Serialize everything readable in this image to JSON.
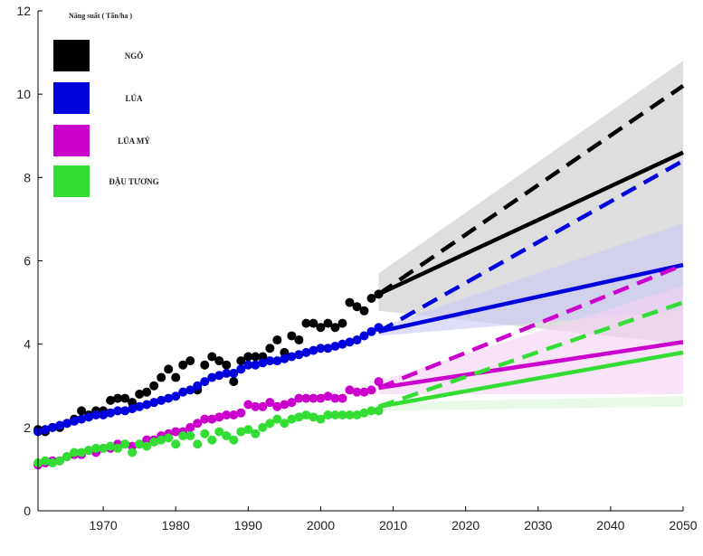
{
  "chart_data": {
    "type": "scatter",
    "title": "",
    "xlabel": "",
    "ylabel": "",
    "legend_title": "Năng suất ( Tấn/ha )",
    "legend_position": "top-left",
    "xlim": [
      1961,
      2050
    ],
    "ylim": [
      0,
      12
    ],
    "xticks": [
      1970,
      1980,
      1990,
      2000,
      2010,
      2020,
      2030,
      2040,
      2050
    ],
    "yticks": [
      0,
      2,
      4,
      6,
      8,
      10,
      12
    ],
    "grid": false,
    "series": [
      {
        "name": "NGÔ",
        "color": "#000000",
        "band_color": "#c8c8c8",
        "x": [
          1961,
          1962,
          1963,
          1964,
          1965,
          1966,
          1967,
          1968,
          1969,
          1970,
          1971,
          1972,
          1973,
          1974,
          1975,
          1976,
          1977,
          1978,
          1979,
          1980,
          1981,
          1982,
          1983,
          1984,
          1985,
          1986,
          1987,
          1988,
          1989,
          1990,
          1991,
          1992,
          1993,
          1994,
          1995,
          1996,
          1997,
          1998,
          1999,
          2000,
          2001,
          2002,
          2003,
          2004,
          2005,
          2006,
          2007,
          2008
        ],
        "y": [
          1.95,
          1.9,
          2.0,
          2.0,
          2.1,
          2.2,
          2.4,
          2.3,
          2.4,
          2.4,
          2.65,
          2.7,
          2.7,
          2.6,
          2.8,
          2.85,
          3.0,
          3.2,
          3.4,
          3.2,
          3.5,
          3.6,
          2.9,
          3.5,
          3.7,
          3.6,
          3.5,
          3.1,
          3.6,
          3.7,
          3.7,
          3.7,
          3.9,
          4.1,
          3.8,
          4.2,
          4.1,
          4.5,
          4.5,
          4.4,
          4.5,
          4.4,
          4.5,
          5.0,
          4.9,
          4.8,
          5.1,
          5.2
        ],
        "projection": {
          "x": [
            2008,
            2050
          ],
          "trend": [
            5.2,
            8.6
          ],
          "required": [
            5.2,
            10.2
          ],
          "band_low": [
            4.8,
            4.0
          ],
          "band_high": [
            5.7,
            10.8
          ]
        }
      },
      {
        "name": "LÚA",
        "color": "#0000dd",
        "band_color": "#c8c8f5",
        "x": [
          1961,
          1962,
          1963,
          1964,
          1965,
          1966,
          1967,
          1968,
          1969,
          1970,
          1971,
          1972,
          1973,
          1974,
          1975,
          1976,
          1977,
          1978,
          1979,
          1980,
          1981,
          1982,
          1983,
          1984,
          1985,
          1986,
          1987,
          1988,
          1989,
          1990,
          1991,
          1992,
          1993,
          1994,
          1995,
          1996,
          1997,
          1998,
          1999,
          2000,
          2001,
          2002,
          2003,
          2004,
          2005,
          2006,
          2007,
          2008
        ],
        "y": [
          1.9,
          1.95,
          2.0,
          2.05,
          2.1,
          2.15,
          2.2,
          2.25,
          2.3,
          2.3,
          2.35,
          2.4,
          2.4,
          2.45,
          2.5,
          2.55,
          2.6,
          2.65,
          2.7,
          2.75,
          2.85,
          2.9,
          3.0,
          3.1,
          3.2,
          3.25,
          3.3,
          3.3,
          3.4,
          3.5,
          3.5,
          3.55,
          3.6,
          3.6,
          3.65,
          3.7,
          3.75,
          3.8,
          3.85,
          3.9,
          3.9,
          3.95,
          4.0,
          4.05,
          4.1,
          4.2,
          4.3,
          4.4
        ],
        "projection": {
          "x": [
            2008,
            2050
          ],
          "trend": [
            4.3,
            5.9
          ],
          "required": [
            4.3,
            8.4
          ],
          "band_low": [
            4.2,
            4.8
          ],
          "band_high": [
            4.4,
            6.9
          ]
        }
      },
      {
        "name": "LÚA MÝ",
        "color": "#cc00cc",
        "band_color": "#f5d0f5",
        "x": [
          1961,
          1962,
          1963,
          1964,
          1965,
          1966,
          1967,
          1968,
          1969,
          1970,
          1971,
          1972,
          1973,
          1974,
          1975,
          1976,
          1977,
          1978,
          1979,
          1980,
          1981,
          1982,
          1983,
          1984,
          1985,
          1986,
          1987,
          1988,
          1989,
          1990,
          1991,
          1992,
          1993,
          1994,
          1995,
          1996,
          1997,
          1998,
          1999,
          2000,
          2001,
          2002,
          2003,
          2004,
          2005,
          2006,
          2007,
          2008
        ],
        "y": [
          1.1,
          1.15,
          1.2,
          1.2,
          1.3,
          1.35,
          1.35,
          1.45,
          1.4,
          1.5,
          1.5,
          1.6,
          1.6,
          1.55,
          1.6,
          1.7,
          1.7,
          1.8,
          1.85,
          1.9,
          1.9,
          2.0,
          2.1,
          2.2,
          2.2,
          2.25,
          2.3,
          2.3,
          2.35,
          2.55,
          2.5,
          2.5,
          2.6,
          2.5,
          2.55,
          2.6,
          2.7,
          2.7,
          2.7,
          2.7,
          2.75,
          2.7,
          2.7,
          2.9,
          2.85,
          2.85,
          2.9,
          3.1
        ],
        "projection": {
          "x": [
            2008,
            2050
          ],
          "trend": [
            2.95,
            4.05
          ],
          "required": [
            2.95,
            5.9
          ],
          "band_low": [
            2.8,
            2.8
          ],
          "band_high": [
            3.1,
            5.4
          ]
        }
      },
      {
        "name": "ĐẬU TƯƠNG",
        "color": "#33dd33",
        "band_color": "#d8f5d8",
        "x": [
          1961,
          1962,
          1963,
          1964,
          1965,
          1966,
          1967,
          1968,
          1969,
          1970,
          1971,
          1972,
          1973,
          1974,
          1975,
          1976,
          1977,
          1978,
          1979,
          1980,
          1981,
          1982,
          1983,
          1984,
          1985,
          1986,
          1987,
          1988,
          1989,
          1990,
          1991,
          1992,
          1993,
          1994,
          1995,
          1996,
          1997,
          1998,
          1999,
          2000,
          2001,
          2002,
          2003,
          2004,
          2005,
          2006,
          2007,
          2008
        ],
        "y": [
          1.15,
          1.2,
          1.15,
          1.2,
          1.3,
          1.4,
          1.4,
          1.45,
          1.5,
          1.5,
          1.55,
          1.5,
          1.6,
          1.4,
          1.6,
          1.55,
          1.65,
          1.7,
          1.75,
          1.6,
          1.8,
          1.8,
          1.6,
          1.85,
          1.7,
          1.9,
          1.8,
          1.7,
          1.9,
          1.95,
          1.85,
          2.0,
          2.1,
          2.2,
          2.1,
          2.2,
          2.25,
          2.3,
          2.25,
          2.2,
          2.3,
          2.3,
          2.3,
          2.3,
          2.3,
          2.35,
          2.4,
          2.4
        ],
        "projection": {
          "x": [
            2008,
            2050
          ],
          "trend": [
            2.5,
            3.8
          ],
          "required": [
            2.5,
            5.0
          ],
          "band_low": [
            2.4,
            2.5
          ],
          "band_high": [
            2.6,
            2.75
          ]
        }
      }
    ]
  }
}
